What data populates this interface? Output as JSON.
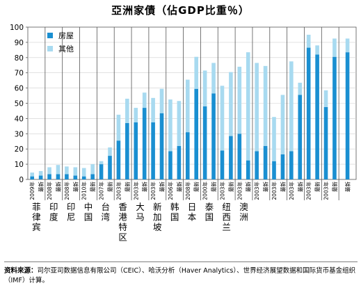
{
  "title": "亞洲家債（佔GDP比重％）",
  "source_label": "资料來源：",
  "source_text": "司尔亚司数据信息有限公司（CEIC）、哈沃分析（Haver Analytics）、世界经济展望数据和国际货币基金组织（IMF）计算。",
  "colors": {
    "housing": "#1a8fd1",
    "other": "#a8daf0"
  },
  "chart_data": {
    "type": "bar",
    "stacked": true,
    "ylim": [
      0,
      100
    ],
    "yticks": [
      0,
      10,
      20,
      30,
      40,
      50,
      60,
      70,
      80,
      90,
      100
    ],
    "legend": {
      "position": "top-left",
      "entries": [
        "房屋",
        "其他"
      ]
    },
    "series": [
      {
        "name": "房屋",
        "color_key": "housing"
      },
      {
        "name": "其他",
        "color_key": "other"
      }
    ],
    "groups": [
      {
        "name": "菲律宾",
        "bars": [
          {
            "label": "2009年",
            "housing": 2,
            "other": 2.5
          },
          {
            "label": "最新",
            "housing": 2.5,
            "other": 3
          }
        ]
      },
      {
        "name": "印度",
        "bars": [
          {
            "label": "2008年",
            "housing": 3.5,
            "other": 4.5
          },
          {
            "label": "最新",
            "housing": 3.5,
            "other": 6
          }
        ]
      },
      {
        "name": "印尼",
        "bars": [
          {
            "label": "2008年",
            "housing": 3.5,
            "other": 5
          },
          {
            "label": "最新",
            "housing": 2.5,
            "other": 5.5
          }
        ]
      },
      {
        "name": "中国",
        "bars": [
          {
            "label": "2010年",
            "housing": 2,
            "other": 5.5
          },
          {
            "label": "最新",
            "housing": 3.5,
            "other": 6.5
          }
        ]
      },
      {
        "name": "台湾",
        "bars": [
          {
            "label": "2007年",
            "housing": 10,
            "other": 2
          },
          {
            "label": "最新",
            "housing": 15.5,
            "other": 5.5
          }
        ]
      },
      {
        "name": "香港特区",
        "bars": [
          {
            "label": "2003年",
            "housing": 25.5,
            "other": 17
          },
          {
            "label": "最新",
            "housing": 37,
            "other": 16
          }
        ]
      },
      {
        "name": "大马",
        "bars": [
          {
            "label": "2003年",
            "housing": 37.5,
            "other": 9.5
          },
          {
            "label": "最新",
            "housing": 47,
            "other": 10
          }
        ]
      },
      {
        "name": "新加坡",
        "bars": [
          {
            "label": "2003年",
            "housing": 37.5,
            "other": 16
          },
          {
            "label": "最新",
            "housing": 43.5,
            "other": 16
          }
        ]
      },
      {
        "name": "韩国",
        "bars": [
          {
            "label": "2006年",
            "housing": 18.5,
            "other": 34
          },
          {
            "label": "最新",
            "housing": 22,
            "other": 29.5
          }
        ]
      },
      {
        "name": "日本",
        "bars": [
          {
            "label": "2008年",
            "housing": 31,
            "other": 34.5
          },
          {
            "label": "最新",
            "housing": 59.5,
            "other": 21
          }
        ]
      },
      {
        "name": "泰国",
        "bars": [
          {
            "label": "2000年",
            "housing": 48,
            "other": 23.5
          },
          {
            "label": "最新",
            "housing": 56.5,
            "other": 20
          }
        ]
      },
      {
        "name": "纽西兰",
        "bars": [
          {
            "label": "2003年",
            "housing": 19,
            "other": 42.5
          },
          {
            "label": "最新",
            "housing": 28.5,
            "other": 42
          }
        ]
      },
      {
        "name": "澳洲",
        "bars": [
          {
            "label": "2003年",
            "housing": 30,
            "other": 44
          },
          {
            "label": "最新",
            "housing": 12.5,
            "other": 71
          }
        ]
      },
      {
        "name": "",
        "bars": [
          {
            "label": "2003年",
            "housing": 18.5,
            "other": 58
          },
          {
            "label": "最新",
            "housing": 22,
            "other": 52.5
          }
        ]
      },
      {
        "name": "",
        "bars": [
          {
            "label": "2003年",
            "housing": 12,
            "other": 29
          },
          {
            "label": "最新",
            "housing": 16.5,
            "other": 39
          }
        ]
      },
      {
        "name": "",
        "bars": [
          {
            "label": "2003年",
            "housing": 18.5,
            "other": 59
          },
          {
            "label": "最新",
            "housing": 55.5,
            "other": 8
          }
        ]
      },
      {
        "name": "",
        "bars": [
          {
            "label": "2003年",
            "housing": 86.5,
            "other": 8.5
          },
          {
            "label": "最新",
            "housing": 82,
            "other": 6
          }
        ]
      },
      {
        "name": "",
        "bars": [
          {
            "label": "2003年",
            "housing": 47.5,
            "other": 11
          },
          {
            "label": "最新",
            "housing": 80.5,
            "other": 12
          }
        ]
      },
      {
        "name": "",
        "bars": [
          {
            "label": "最新",
            "housing": 83.5,
            "other": 9
          }
        ]
      }
    ]
  }
}
